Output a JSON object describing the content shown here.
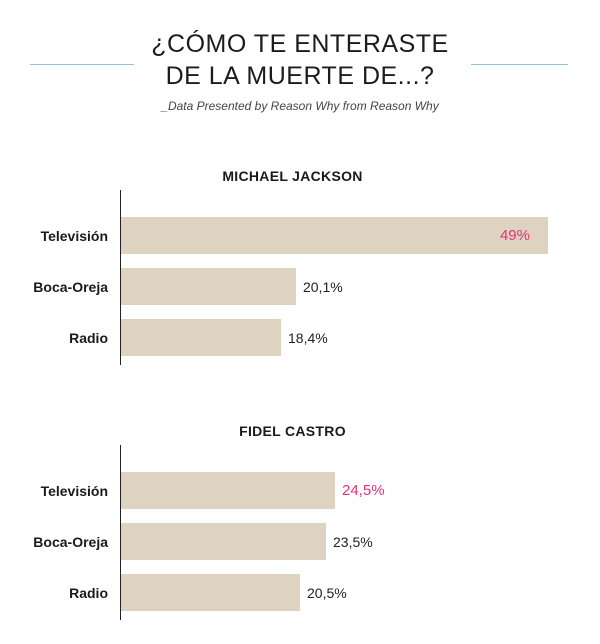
{
  "header": {
    "title_line1": "¿CÓMO TE ENTERASTE",
    "title_line2": "DE LA MUERTE DE...?",
    "subtitle": "_Data Presented by Reason Why from Reason Why",
    "rule_color": "#8fc3df"
  },
  "colors": {
    "bar": "#ddd3c0",
    "highlight": "#e8317a",
    "text": "#222222"
  },
  "chart_data": [
    {
      "type": "bar",
      "orientation": "horizontal",
      "title": "MICHAEL JACKSON",
      "categories": [
        "Televisión",
        "Boca-Oreja",
        "Radio"
      ],
      "values": [
        49,
        20.1,
        18.4
      ],
      "value_labels": [
        "49%",
        "20,1%",
        "18,4%"
      ],
      "highlight_index": 0,
      "xlim": [
        0,
        49
      ],
      "grid": false
    },
    {
      "type": "bar",
      "orientation": "horizontal",
      "title": "FIDEL CASTRO",
      "categories": [
        "Televisión",
        "Boca-Oreja",
        "Radio"
      ],
      "values": [
        24.5,
        23.5,
        20.5
      ],
      "value_labels": [
        "24,5%",
        "23,5%",
        "20,5%"
      ],
      "highlight_index": 0,
      "xlim": [
        0,
        49
      ],
      "grid": false
    }
  ]
}
